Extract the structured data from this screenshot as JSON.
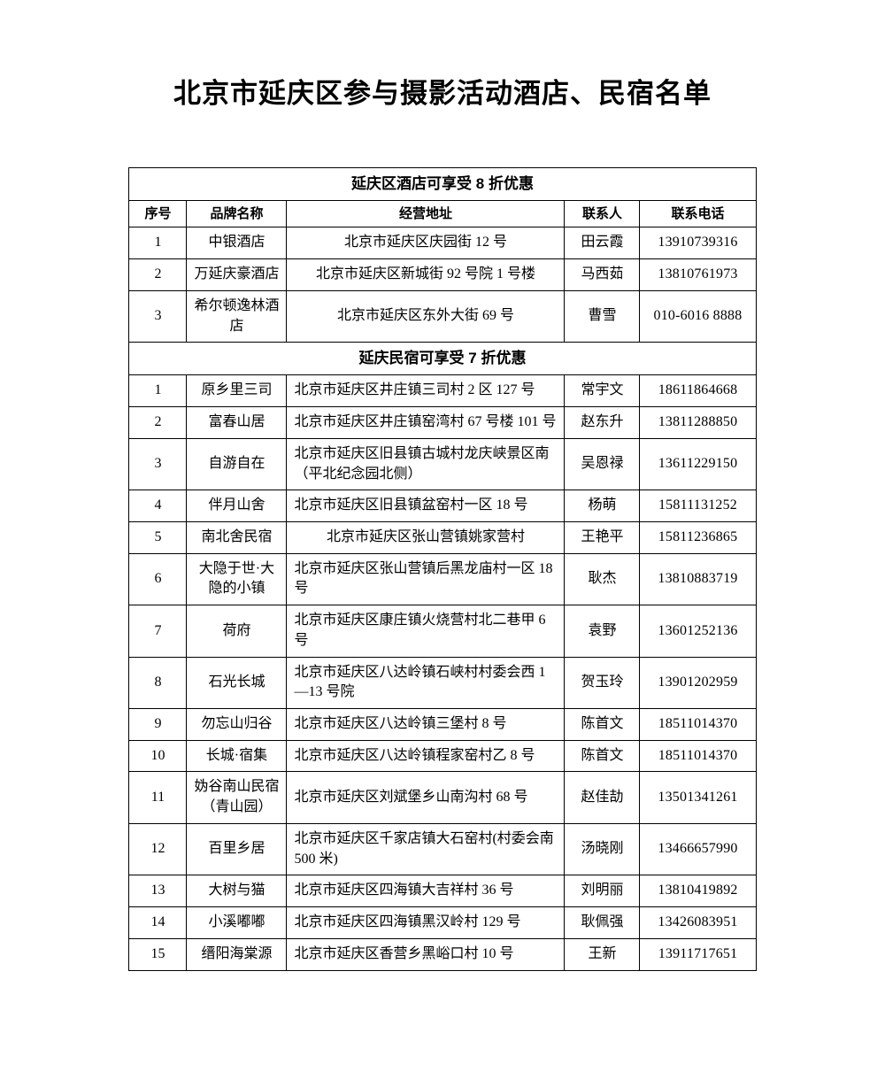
{
  "page": {
    "title": "北京市延庆区参与摄影活动酒店、民宿名单"
  },
  "table": {
    "columns": [
      "序号",
      "品牌名称",
      "经营地址",
      "联系人",
      "联系电话"
    ],
    "sections": [
      {
        "header": "延庆区酒店可享受 8 折优惠",
        "show_columns": true,
        "rows": [
          {
            "no": "1",
            "name": "中银酒店",
            "address": "北京市延庆区庆园街 12 号",
            "addr_align": "center",
            "contact": "田云霞",
            "phone": "13910739316"
          },
          {
            "no": "2",
            "name": "万延庆豪酒店",
            "address": "北京市延庆区新城街 92 号院 1 号楼",
            "addr_align": "center",
            "contact": "马西茹",
            "phone": "13810761973"
          },
          {
            "no": "3",
            "name": "希尔顿逸林酒店",
            "address": "北京市延庆区东外大街 69 号",
            "addr_align": "center",
            "contact": "曹雪",
            "phone": "010-6016 8888"
          }
        ]
      },
      {
        "header": "延庆民宿可享受 7 折优惠",
        "show_columns": false,
        "rows": [
          {
            "no": "1",
            "name": "原乡里三司",
            "address": "北京市延庆区井庄镇三司村 2 区 127 号",
            "addr_align": "left",
            "contact": "常宇文",
            "phone": "18611864668"
          },
          {
            "no": "2",
            "name": "富春山居",
            "address": "北京市延庆区井庄镇窑湾村 67 号楼 101 号",
            "addr_align": "left",
            "contact": "赵东升",
            "phone": "13811288850"
          },
          {
            "no": "3",
            "name": "自游自在",
            "address": "北京市延庆区旧县镇古城村龙庆峡景区南（平北纪念园北侧）",
            "addr_align": "left",
            "contact": "吴恩禄",
            "phone": "13611229150"
          },
          {
            "no": "4",
            "name": "伴月山舍",
            "address": "北京市延庆区旧县镇盆窑村一区 18 号",
            "addr_align": "left",
            "contact": "杨萌",
            "phone": "15811131252"
          },
          {
            "no": "5",
            "name": "南北舍民宿",
            "address": "北京市延庆区张山营镇姚家营村",
            "addr_align": "center",
            "contact": "王艳平",
            "phone": "15811236865"
          },
          {
            "no": "6",
            "name": "大隐于世·大隐的小镇",
            "address": "北京市延庆区张山营镇后黑龙庙村一区 18 号",
            "addr_align": "left",
            "contact": "耿杰",
            "phone": "13810883719"
          },
          {
            "no": "7",
            "name": "荷府",
            "address": "北京市延庆区康庄镇火烧营村北二巷甲 6 号",
            "addr_align": "left",
            "contact": "袁野",
            "phone": "13601252136"
          },
          {
            "no": "8",
            "name": "石光长城",
            "address": "北京市延庆区八达岭镇石峡村村委会西 1—13 号院",
            "addr_align": "left",
            "contact": "贺玉玲",
            "phone": "13901202959"
          },
          {
            "no": "9",
            "name": "勿忘山归谷",
            "address": "北京市延庆区八达岭镇三堡村 8 号",
            "addr_align": "left",
            "contact": "陈首文",
            "phone": "18511014370"
          },
          {
            "no": "10",
            "name": "长城·宿集",
            "address": "北京市延庆区八达岭镇程家窑村乙 8 号",
            "addr_align": "left",
            "contact": "陈首文",
            "phone": "18511014370"
          },
          {
            "no": "11",
            "name": "妫谷南山民宿（青山园）",
            "address": "北京市延庆区刘斌堡乡山南沟村 68 号",
            "addr_align": "left",
            "contact": "赵佳劼",
            "phone": "13501341261"
          },
          {
            "no": "12",
            "name": "百里乡居",
            "address": "北京市延庆区千家店镇大石窑村(村委会南 500 米)",
            "addr_align": "left",
            "contact": "汤晓刚",
            "phone": "13466657990"
          },
          {
            "no": "13",
            "name": "大树与猫",
            "address": "北京市延庆区四海镇大吉祥村 36 号",
            "addr_align": "left",
            "contact": "刘明丽",
            "phone": "13810419892"
          },
          {
            "no": "14",
            "name": "小溪嘟嘟",
            "address": "北京市延庆区四海镇黑汉岭村 129 号",
            "addr_align": "left",
            "contact": "耿佩强",
            "phone": "13426083951"
          },
          {
            "no": "15",
            "name": "缙阳海棠源",
            "address": "北京市延庆区香营乡黑峪口村 10 号",
            "addr_align": "left",
            "contact": "王新",
            "phone": "13911717651"
          }
        ]
      }
    ]
  }
}
